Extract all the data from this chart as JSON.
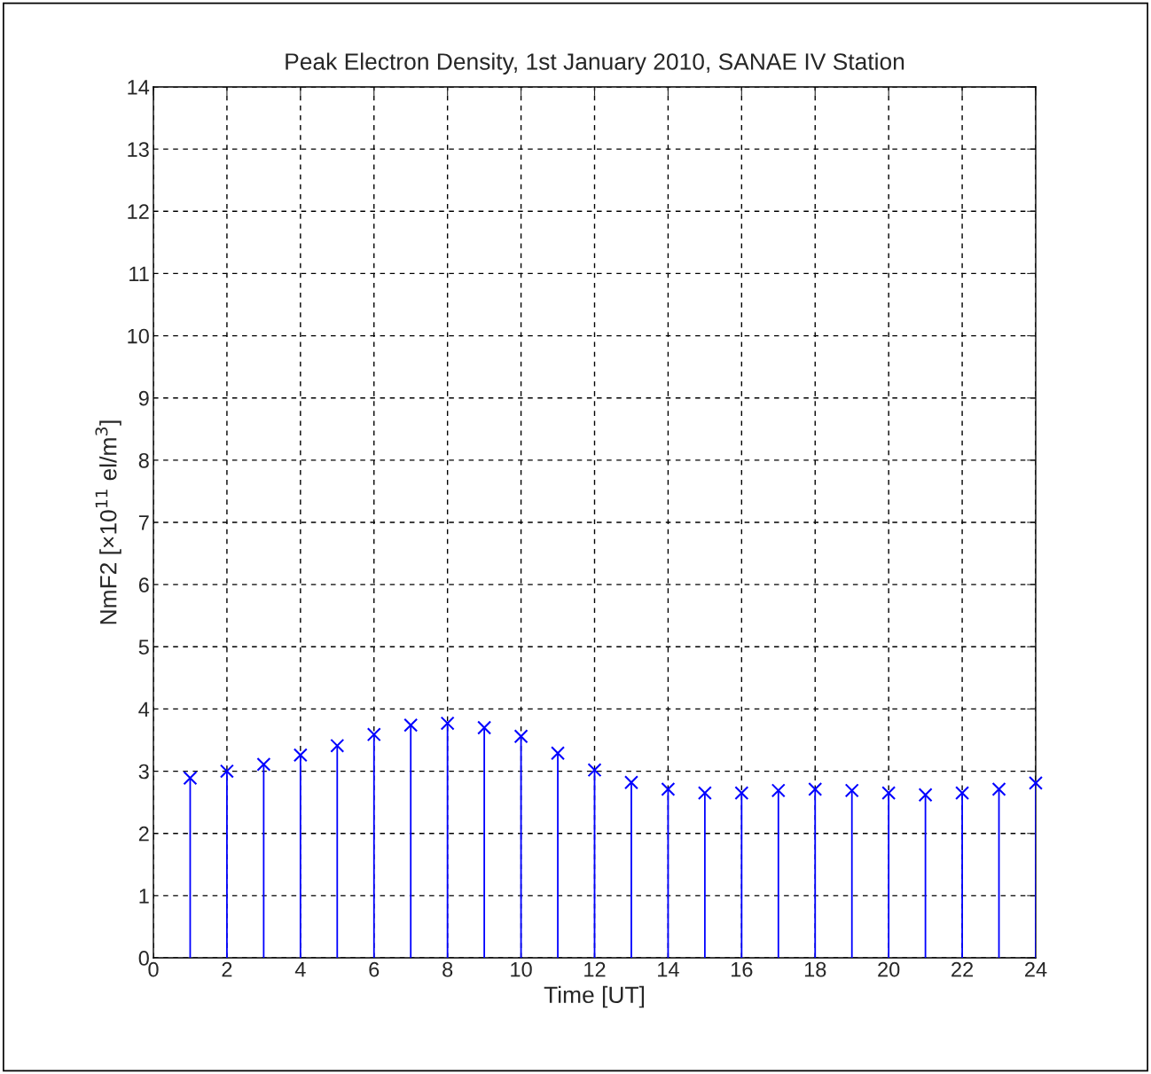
{
  "chart_data": {
    "type": "lollipop",
    "title": "Peak Electron Density, 1st January 2010, SANAE IV Station",
    "xlabel": "Time [UT]",
    "ylabel": "NmF2 [×10$^{11}$ el/m$^{3}$]",
    "x": [
      1,
      2,
      3,
      4,
      5,
      6,
      7,
      8,
      9,
      10,
      11,
      12,
      13,
      14,
      15,
      16,
      17,
      18,
      19,
      20,
      21,
      22,
      23,
      24
    ],
    "series": [
      {
        "color": "#0000ff",
        "values": [
          2.89,
          3.0,
          3.11,
          3.26,
          3.41,
          3.59,
          3.74,
          3.77,
          3.7,
          3.56,
          3.29,
          3.02,
          2.82,
          2.71,
          2.65,
          2.65,
          2.69,
          2.71,
          2.69,
          2.65,
          2.62,
          2.65,
          2.71,
          2.81
        ]
      }
    ],
    "xlim": [
      0,
      24
    ],
    "xticks": [
      0,
      2,
      4,
      6,
      8,
      10,
      12,
      14,
      16,
      18,
      20,
      22,
      24
    ],
    "ylim": [
      0,
      14
    ],
    "yticks": [
      0,
      1,
      2,
      3,
      4,
      5,
      6,
      7,
      8,
      9,
      10,
      11,
      12,
      13,
      14
    ],
    "grid": true,
    "marker": "cross"
  }
}
